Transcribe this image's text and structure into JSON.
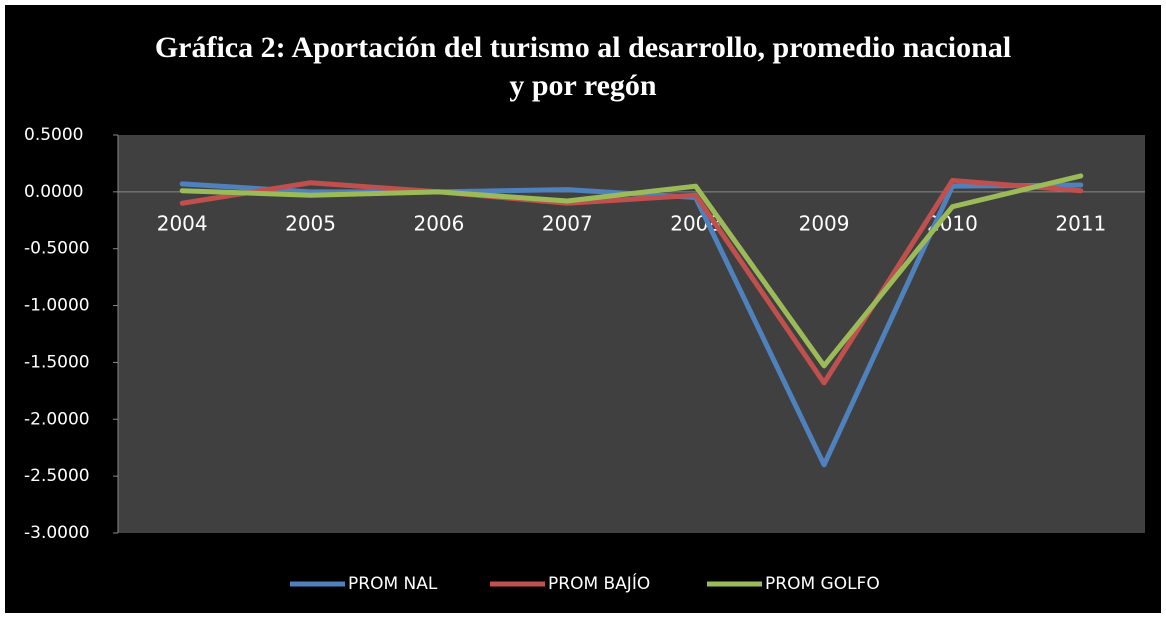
{
  "chart_data": {
    "type": "line",
    "title": [
      "Gráfica 2: Aportación del turismo al desarrollo, promedio nacional",
      "y por regón"
    ],
    "categories": [
      "2004",
      "2005",
      "2006",
      "2007",
      "2008",
      "2009",
      "2010",
      "2011"
    ],
    "series": [
      {
        "name": "PROM NAL",
        "color": "#4f81bd",
        "values": [
          0.07,
          0.0,
          0.0,
          0.02,
          -0.05,
          -2.4,
          0.05,
          0.06
        ]
      },
      {
        "name": "PROM BAJÍO",
        "color": "#c0504d",
        "values": [
          -0.1,
          0.08,
          0.0,
          -0.1,
          -0.03,
          -1.68,
          0.1,
          0.01
        ]
      },
      {
        "name": "PROM GOLFO",
        "color": "#9bbb59",
        "values": [
          0.01,
          -0.03,
          0.0,
          -0.08,
          0.05,
          -1.53,
          -0.13,
          0.14
        ]
      }
    ],
    "ylim": [
      -3.0,
      0.5
    ],
    "yticks": [
      {
        "value": 0.5,
        "label": "0.5000"
      },
      {
        "value": 0.0,
        "label": "0.0000"
      },
      {
        "value": -0.5,
        "label": "-0.5000"
      },
      {
        "value": -1.0,
        "label": "-1.0000"
      },
      {
        "value": -1.5,
        "label": "-1.5000"
      },
      {
        "value": -2.0,
        "label": "-2.0000"
      },
      {
        "value": -2.5,
        "label": "-2.5000"
      },
      {
        "value": -3.0,
        "label": "-3.0000"
      }
    ],
    "grid": false,
    "legend": "bottom"
  }
}
